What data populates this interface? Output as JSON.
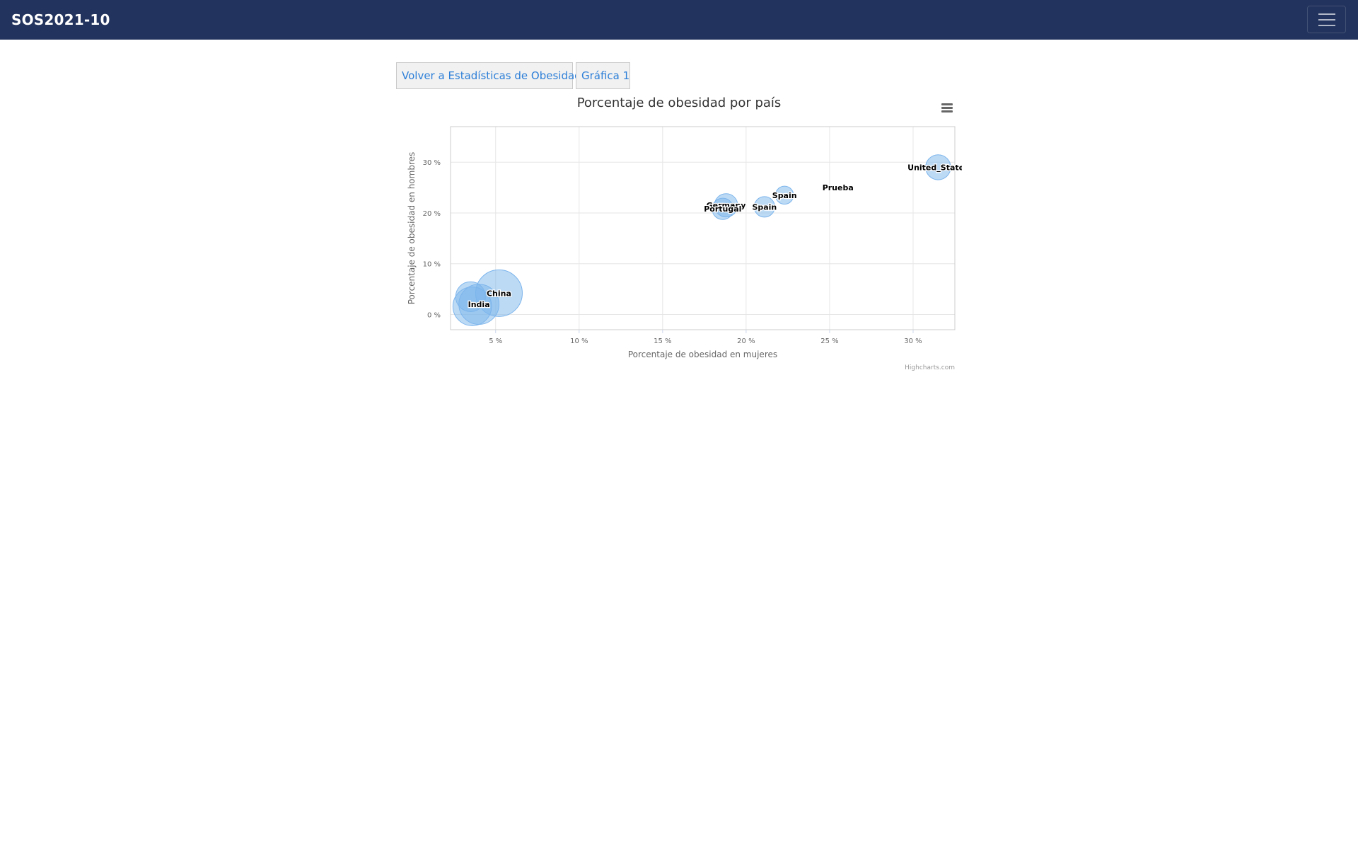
{
  "navbar": {
    "brand": "SOS2021-10",
    "menu_icon": "hamburger-icon"
  },
  "buttons": {
    "back_label": "Volver a Estadísticas de Obesidad",
    "chart1_label": "Gráfica 1"
  },
  "chart_menu_icon": "hamburger-icon",
  "colors": {
    "navbar": "#22335d",
    "bubble_fill": "#7cb5ec",
    "link": "#2d7fd8"
  },
  "chart_data": {
    "type": "scatter",
    "subtype": "bubble",
    "title": "Porcentaje de obesidad por país",
    "xlabel": "Porcentaje de obesidad en mujeres",
    "ylabel": "Porcentaje de obesidad en hombres",
    "xlim": [
      2.3,
      32.5
    ],
    "ylim": [
      -3,
      37
    ],
    "x_ticks": [
      {
        "value": 5,
        "label": "5 %"
      },
      {
        "value": 10,
        "label": "10 %"
      },
      {
        "value": 15,
        "label": "15 %"
      },
      {
        "value": 20,
        "label": "20 %"
      },
      {
        "value": 25,
        "label": "25 %"
      },
      {
        "value": 30,
        "label": "30 %"
      }
    ],
    "y_ticks": [
      {
        "value": 0,
        "label": "0 %"
      },
      {
        "value": 10,
        "label": "10 %"
      },
      {
        "value": 20,
        "label": "20 %"
      },
      {
        "value": 30,
        "label": "30 %"
      }
    ],
    "grid": true,
    "credits": "Highcharts.com",
    "points": [
      {
        "name": "United_States",
        "x": 31.5,
        "y": 29,
        "z": 15
      },
      {
        "name": "Prueba",
        "x": 25.5,
        "y": 25,
        "z": 0
      },
      {
        "name": "Spain",
        "x": 22.3,
        "y": 23.5,
        "z": 5
      },
      {
        "name": "Spain",
        "x": 21.1,
        "y": 21.2,
        "z": 8
      },
      {
        "name": "Germany",
        "x": 18.8,
        "y": 21.5,
        "z": 12
      },
      {
        "name": "Portugal",
        "x": 18.6,
        "y": 20.8,
        "z": 9
      },
      {
        "name": "China",
        "x": 5.2,
        "y": 4.2,
        "z": 80
      },
      {
        "name": "India",
        "x": 4.0,
        "y": 2.0,
        "z": 55
      },
      {
        "name": "",
        "x": 3.6,
        "y": 1.6,
        "z": 50
      },
      {
        "name": "",
        "x": 3.5,
        "y": 3.5,
        "z": 25
      }
    ]
  }
}
